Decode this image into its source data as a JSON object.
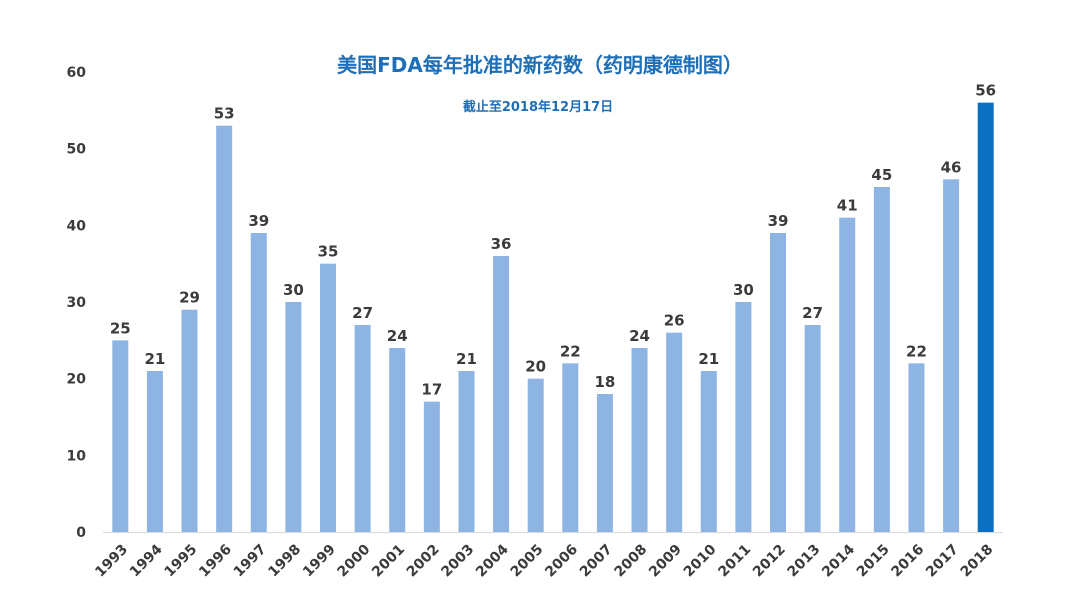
{
  "chart_data": {
    "type": "bar",
    "title": "美国FDA每年批准的新药数（药明康德制图）",
    "subtitle": "截止至2018年12月17日",
    "xlabel": "",
    "ylabel": "",
    "ylim": [
      0,
      60
    ],
    "yticks": [
      0,
      10,
      20,
      30,
      40,
      50,
      60
    ],
    "grid": false,
    "legend": "none",
    "colors": {
      "bar": "#8db4e2",
      "highlight": "#0b6fc2",
      "title": "#1f6fb8",
      "text": "#3b3b3b"
    },
    "highlight_category": "2018",
    "categories": [
      "1993",
      "1994",
      "1995",
      "1996",
      "1997",
      "1998",
      "1999",
      "2000",
      "2001",
      "2002",
      "2003",
      "2004",
      "2005",
      "2006",
      "2007",
      "2008",
      "2009",
      "2010",
      "2011",
      "2012",
      "2013",
      "2014",
      "2015",
      "2016",
      "2017",
      "2018"
    ],
    "values": [
      25,
      21,
      29,
      53,
      39,
      30,
      35,
      27,
      24,
      17,
      21,
      36,
      20,
      22,
      18,
      24,
      26,
      21,
      30,
      39,
      27,
      41,
      45,
      22,
      46,
      56
    ]
  }
}
